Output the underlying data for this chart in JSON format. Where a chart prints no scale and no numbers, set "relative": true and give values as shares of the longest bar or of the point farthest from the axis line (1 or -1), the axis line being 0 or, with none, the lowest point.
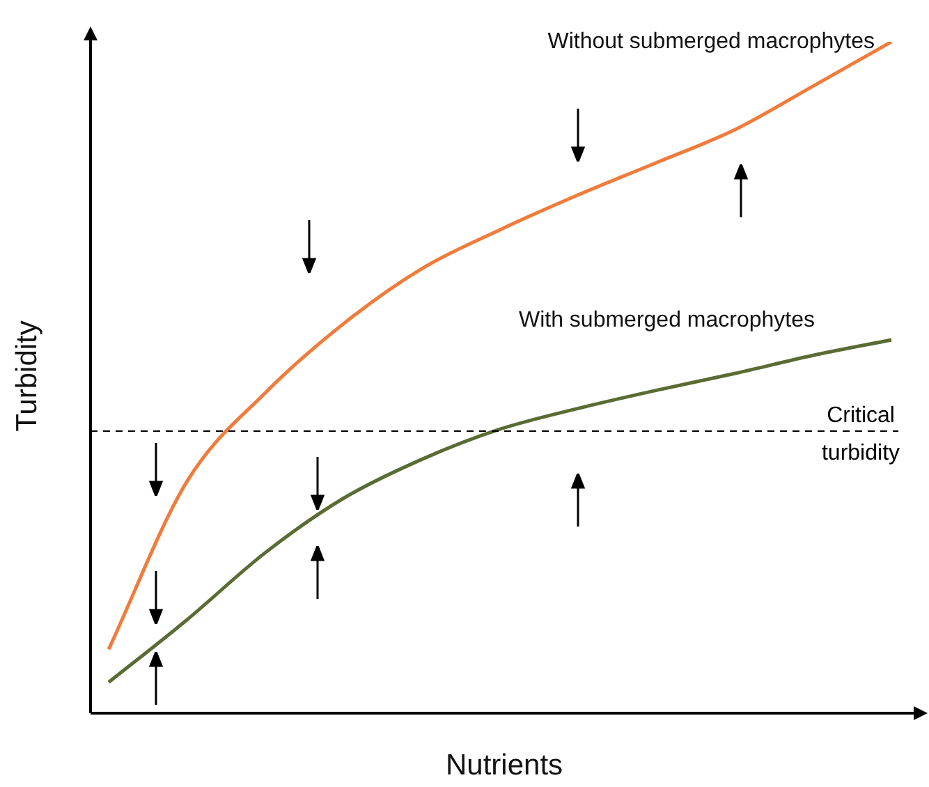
{
  "chart_data": {
    "type": "line",
    "relative": true,
    "xlabel": "Nutrients",
    "ylabel": "Turbidity",
    "categories": [
      null,
      null,
      null,
      null,
      null,
      null,
      null,
      null,
      null,
      null,
      null
    ],
    "series": [
      {
        "name": "Without submerged macrophytes",
        "color": "#f07c3c",
        "values": [
          0.095,
          0.345,
          0.477,
          0.58,
          0.662,
          0.72,
          0.772,
          0.82,
          0.869,
          0.934,
          1.0
        ]
      },
      {
        "name": "With submerged macrophytes",
        "color": "#5b6b34",
        "values": [
          0.046,
          0.139,
          0.239,
          0.32,
          0.378,
          0.423,
          0.454,
          0.481,
          0.506,
          0.533,
          0.556
        ]
      }
    ],
    "ref_lines": [
      {
        "axis": "y",
        "value": 0.42,
        "label": "Critical turbidity",
        "line_style": "dashed"
      }
    ],
    "legend": false,
    "marker": "none",
    "line_style": "solid"
  }
}
